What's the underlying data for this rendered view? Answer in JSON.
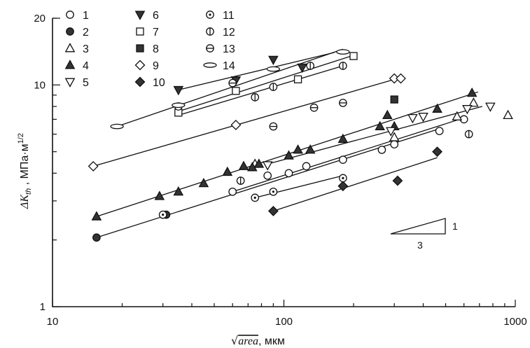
{
  "chart_data": {
    "type": "scatter",
    "x_scale": "log",
    "y_scale": "log",
    "xlim": [
      10,
      1000
    ],
    "ylim": [
      1,
      20
    ],
    "x_ticks": [
      {
        "value": 10,
        "label": "10"
      },
      {
        "value": 100,
        "label": "100"
      },
      {
        "value": 1000,
        "label": "1000"
      }
    ],
    "y_ticks": [
      {
        "value": 1,
        "label": "1"
      },
      {
        "value": 10,
        "label": "10"
      },
      {
        "value": 20,
        "label": "20"
      }
    ],
    "xlabel": {
      "rad": "area",
      "unit": ", мкм"
    },
    "ylabel": {
      "delta": "ΔK",
      "sub": "th",
      "unit": " , МПа·м",
      "sup": "1/2"
    },
    "grid": false,
    "legend_position": "top-left",
    "slope_triangle": {
      "run": "3",
      "rise": "1"
    },
    "series": [
      {
        "name": "1",
        "marker": "circle-open",
        "points": [
          [
            60,
            3.3
          ],
          [
            85,
            3.9
          ],
          [
            105,
            4.0
          ],
          [
            125,
            4.3
          ],
          [
            180,
            4.6
          ],
          [
            265,
            5.1
          ],
          [
            300,
            5.4
          ],
          [
            470,
            6.2
          ],
          [
            600,
            7.0
          ]
        ]
      },
      {
        "name": "2",
        "marker": "circle-solid",
        "points": [
          [
            15.5,
            2.05
          ],
          [
            31,
            2.6
          ]
        ]
      },
      {
        "name": "3",
        "marker": "triangle-up-open",
        "points": [
          [
            75,
            4.4
          ],
          [
            300,
            5.8
          ],
          [
            560,
            7.2
          ],
          [
            660,
            8.3
          ],
          [
            930,
            7.3
          ]
        ]
      },
      {
        "name": "4",
        "marker": "triangle-up-solid",
        "points": [
          [
            15.5,
            2.55
          ],
          [
            29,
            3.15
          ],
          [
            35,
            3.3
          ],
          [
            45,
            3.6
          ],
          [
            57,
            4.05
          ],
          [
            67,
            4.3
          ],
          [
            73,
            4.25
          ],
          [
            78,
            4.4
          ],
          [
            105,
            4.8
          ],
          [
            115,
            5.1
          ],
          [
            130,
            5.1
          ],
          [
            180,
            5.7
          ],
          [
            260,
            6.5
          ],
          [
            280,
            7.3
          ],
          [
            300,
            6.5
          ],
          [
            460,
            7.8
          ],
          [
            650,
            9.2
          ]
        ]
      },
      {
        "name": "5",
        "marker": "triangle-down-open",
        "points": [
          [
            85,
            4.35
          ],
          [
            290,
            6.2
          ],
          [
            360,
            7.1
          ],
          [
            400,
            7.2
          ],
          [
            620,
            7.8
          ],
          [
            780,
            8.0
          ]
        ]
      },
      {
        "name": "6",
        "marker": "triangle-down-solid",
        "points": [
          [
            35,
            9.5
          ],
          [
            62,
            10.5
          ],
          [
            90,
            13.0
          ],
          [
            120,
            12.0
          ]
        ]
      },
      {
        "name": "7",
        "marker": "square-open",
        "points": [
          [
            35,
            7.5
          ],
          [
            62,
            9.4
          ],
          [
            115,
            10.6
          ],
          [
            200,
            13.5
          ]
        ]
      },
      {
        "name": "8",
        "marker": "square-solid",
        "points": [
          [
            300,
            8.6
          ]
        ]
      },
      {
        "name": "9",
        "marker": "diamond-open",
        "points": [
          [
            15,
            4.3
          ],
          [
            62,
            6.6
          ],
          [
            300,
            10.7
          ],
          [
            320,
            10.7
          ]
        ]
      },
      {
        "name": "10",
        "marker": "diamond-solid",
        "points": [
          [
            90,
            2.7
          ],
          [
            180,
            3.5
          ],
          [
            310,
            3.7
          ],
          [
            460,
            5.0
          ]
        ]
      },
      {
        "name": "11",
        "marker": "circle-dot",
        "points": [
          [
            30,
            2.6
          ],
          [
            75,
            3.1
          ],
          [
            90,
            3.3
          ],
          [
            180,
            3.8
          ]
        ]
      },
      {
        "name": "12",
        "marker": "circle-vbar",
        "points": [
          [
            65,
            3.7
          ],
          [
            75,
            8.8
          ],
          [
            90,
            9.8
          ],
          [
            130,
            12.2
          ],
          [
            180,
            12.2
          ],
          [
            630,
            6.0
          ]
        ]
      },
      {
        "name": "13",
        "marker": "circle-hbar",
        "points": [
          [
            35,
            8.0
          ],
          [
            60,
            10.2
          ],
          [
            90,
            6.5
          ],
          [
            135,
            7.9
          ],
          [
            180,
            8.3
          ]
        ]
      },
      {
        "name": "14",
        "marker": "ellipse-open",
        "points": [
          [
            19,
            6.5
          ],
          [
            35,
            8.1
          ],
          [
            90,
            11.8
          ],
          [
            180,
            14.1
          ]
        ]
      }
    ],
    "trend_lines": [
      [
        [
          19,
          6.5
        ],
        [
          180,
          14.5
        ]
      ],
      [
        [
          35,
          9.5
        ],
        [
          165,
          14.0
        ]
      ],
      [
        [
          35,
          7.6
        ],
        [
          200,
          13.6
        ]
      ],
      [
        [
          35,
          7.3
        ],
        [
          185,
          12.3
        ]
      ],
      [
        [
          15,
          4.3
        ],
        [
          320,
          10.8
        ]
      ],
      [
        [
          15.5,
          2.55
        ],
        [
          690,
          9.3
        ]
      ],
      [
        [
          15.5,
          2.05
        ],
        [
          460,
          6.3
        ]
      ],
      [
        [
          60,
          3.3
        ],
        [
          600,
          7.1
        ]
      ],
      [
        [
          85,
          4.4
        ],
        [
          720,
          8.0
        ]
      ],
      [
        [
          75,
          3.1
        ],
        [
          180,
          3.9
        ]
      ],
      [
        [
          90,
          2.7
        ],
        [
          460,
          4.7
        ]
      ]
    ]
  }
}
